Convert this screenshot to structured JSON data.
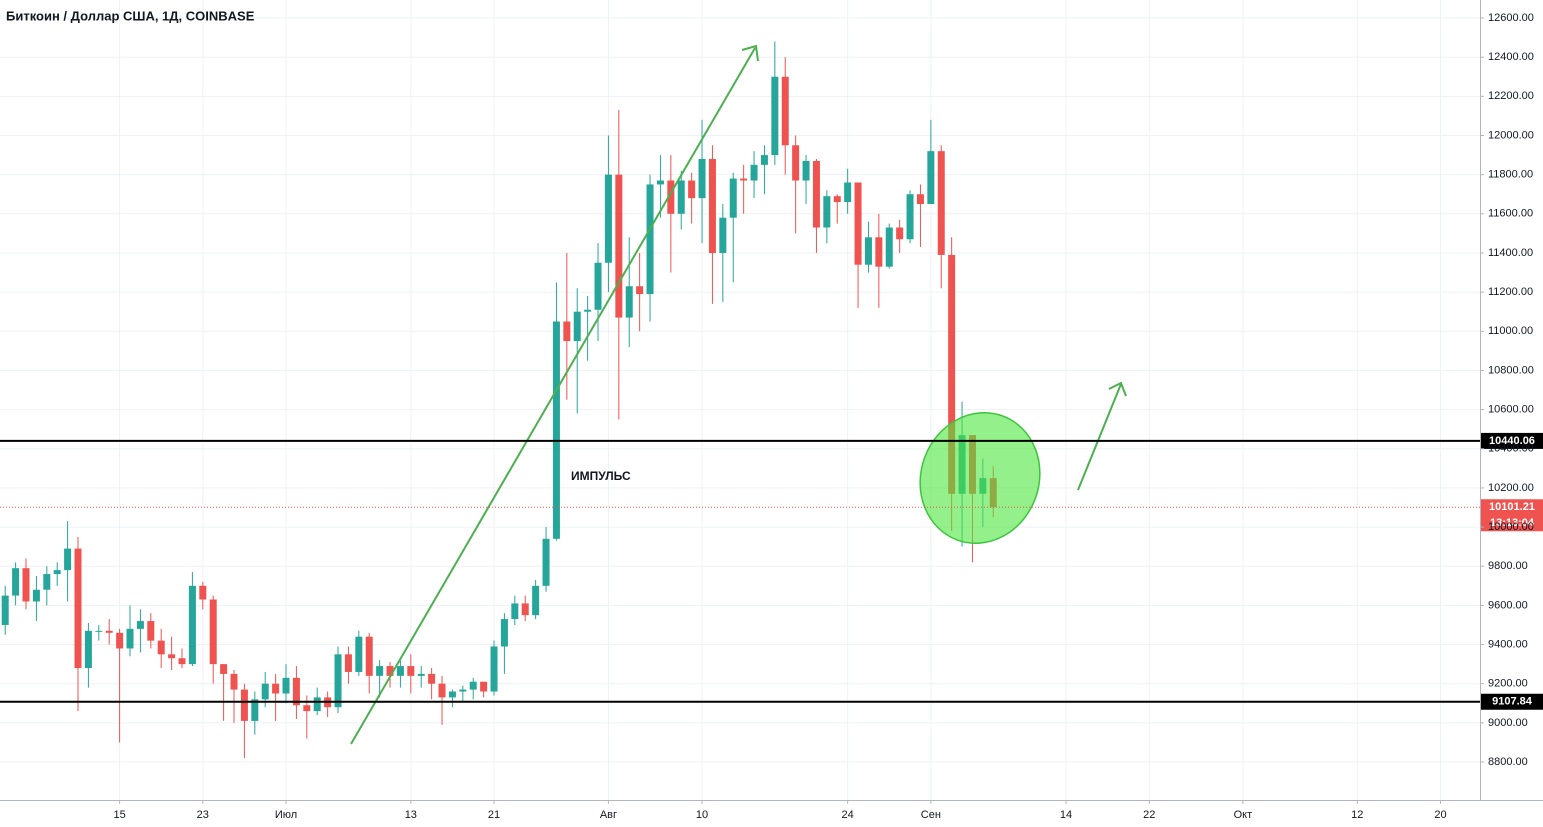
{
  "chart_data": {
    "type": "candlestick",
    "title": "Биткоин / Доллар США, 1Д, COINBASE",
    "annotation": "ИМПУЛЬС",
    "x": [
      -27,
      -26,
      -25,
      -24,
      -23,
      -22,
      -21,
      -20,
      -19,
      -18,
      -17,
      -16,
      -15,
      -14,
      -13,
      -12,
      -11,
      -10,
      -9,
      -8,
      -7,
      -6,
      -5,
      -4,
      -3,
      -2,
      -1,
      0,
      1,
      2,
      3,
      4,
      5,
      6,
      7,
      8,
      9,
      10,
      11,
      12,
      13,
      14,
      15,
      16,
      17,
      18,
      19,
      20,
      21,
      22,
      23,
      24,
      25,
      26,
      27,
      28,
      29,
      30,
      31,
      32,
      33,
      34,
      35,
      36,
      37,
      38,
      39,
      40,
      41,
      42,
      43,
      44,
      45,
      46,
      47,
      48,
      49,
      50,
      51,
      52,
      53,
      54,
      55,
      56,
      57,
      58,
      59,
      60,
      61,
      62,
      63,
      64,
      65,
      66,
      67,
      68
    ],
    "open": [
      9500,
      9650,
      9790,
      9620,
      9680,
      9760,
      9780,
      9890,
      9280,
      9470,
      9470,
      9460,
      9380,
      9480,
      9520,
      9420,
      9350,
      9330,
      9300,
      9700,
      9630,
      9300,
      9250,
      9170,
      9010,
      9120,
      9200,
      9150,
      9230,
      9090,
      9060,
      9130,
      9080,
      9350,
      9260,
      9440,
      9240,
      9290,
      9240,
      9290,
      9240,
      9250,
      9200,
      9130,
      9160,
      9170,
      9210,
      9160,
      9390,
      9530,
      9610,
      9550,
      9700,
      9940,
      11050,
      10950,
      11100,
      11110,
      11350,
      11800,
      11070,
      11230,
      11190,
      11750,
      11770,
      11600,
      11770,
      11680,
      11880,
      11400,
      11580,
      11780,
      11770,
      11850,
      11900,
      12300,
      11950,
      11770,
      11870,
      11530,
      11690,
      11660,
      11760,
      11340,
      11480,
      11330,
      11530,
      11470,
      11700,
      11650,
      11920,
      11390,
      10170,
      10470,
      10170,
      10250
    ],
    "high": [
      9700,
      9820,
      9840,
      9750,
      9800,
      9820,
      10030,
      9950,
      9510,
      9500,
      9530,
      9480,
      9600,
      9580,
      9560,
      9480,
      9440,
      9380,
      9770,
      9720,
      9650,
      9300,
      9270,
      9200,
      9160,
      9260,
      9250,
      9300,
      9290,
      9140,
      9180,
      9160,
      9390,
      9390,
      9470,
      9460,
      9320,
      9310,
      9320,
      9350,
      9290,
      9280,
      9240,
      9170,
      9190,
      9230,
      9210,
      9420,
      9560,
      9650,
      9650,
      9730,
      10000,
      11250,
      11400,
      11220,
      11180,
      11450,
      12000,
      12130,
      11480,
      11400,
      11800,
      11900,
      11900,
      11820,
      11810,
      12080,
      11950,
      11650,
      11810,
      11850,
      11920,
      11950,
      12480,
      12400,
      12000,
      11900,
      11880,
      11720,
      11700,
      11830,
      11760,
      11560,
      11600,
      11550,
      11570,
      11720,
      11750,
      12080,
      11950,
      11480,
      10640,
      10470,
      10350,
      10310
    ],
    "low": [
      9450,
      9600,
      9580,
      9520,
      9600,
      9700,
      9620,
      9060,
      9180,
      9420,
      9400,
      8900,
      9340,
      9360,
      9380,
      9280,
      9270,
      9280,
      9290,
      9580,
      9200,
      9010,
      9000,
      8820,
      8940,
      9080,
      9010,
      9100,
      9020,
      8920,
      9040,
      9030,
      9050,
      9200,
      9240,
      9150,
      9130,
      9180,
      9180,
      9150,
      9180,
      9120,
      8990,
      9080,
      9110,
      9120,
      9130,
      9140,
      9250,
      9500,
      9520,
      9530,
      9670,
      9930,
      10650,
      10580,
      10850,
      10950,
      11200,
      10550,
      10920,
      11000,
      11050,
      11580,
      11300,
      11520,
      11550,
      11450,
      11140,
      11150,
      11250,
      11600,
      11680,
      11700,
      11850,
      11800,
      11500,
      11650,
      11400,
      11450,
      11550,
      11600,
      11120,
      11300,
      11120,
      11320,
      11400,
      11450,
      11430,
      11650,
      11220,
      9980,
      9900,
      9820,
      10000,
      10050
    ],
    "close": [
      9650,
      9790,
      9620,
      9680,
      9760,
      9780,
      9890,
      9280,
      9470,
      9470,
      9460,
      9380,
      9480,
      9520,
      9420,
      9350,
      9330,
      9300,
      9700,
      9630,
      9300,
      9250,
      9170,
      9010,
      9120,
      9200,
      9150,
      9230,
      9090,
      9060,
      9130,
      9080,
      9350,
      9260,
      9440,
      9240,
      9290,
      9240,
      9290,
      9240,
      9250,
      9200,
      9130,
      9160,
      9170,
      9210,
      9160,
      9390,
      9530,
      9610,
      9550,
      9700,
      9940,
      11050,
      10950,
      11100,
      11110,
      11350,
      11800,
      11070,
      11230,
      11190,
      11750,
      11770,
      11600,
      11770,
      11680,
      11880,
      11400,
      11580,
      11780,
      11770,
      11850,
      11900,
      12300,
      11950,
      11770,
      11870,
      11530,
      11690,
      11660,
      11760,
      11340,
      11480,
      11330,
      11530,
      11470,
      11700,
      11650,
      11920,
      11390,
      10170,
      10470,
      10170,
      10250,
      10101.21
    ],
    "up_color": "#26a69a",
    "down_color": "#ef5350",
    "xlim": [
      -27.5,
      114.8
    ],
    "xticks": [
      {
        "value": -16,
        "label": "15"
      },
      {
        "value": -8,
        "label": "23"
      },
      {
        "value": 0,
        "label": "Июл"
      },
      {
        "value": 12,
        "label": "13"
      },
      {
        "value": 20,
        "label": "21"
      },
      {
        "value": 31,
        "label": "Авг"
      },
      {
        "value": 40,
        "label": "10"
      },
      {
        "value": 54,
        "label": "24"
      },
      {
        "value": 62,
        "label": "Сен"
      },
      {
        "value": 75,
        "label": "14"
      },
      {
        "value": 83,
        "label": "22"
      },
      {
        "value": 92,
        "label": "Окт"
      },
      {
        "value": 103,
        "label": "12"
      },
      {
        "value": 111,
        "label": "20"
      }
    ],
    "ylim": [
      8606,
      12692
    ],
    "yticks": [
      {
        "value": 8800,
        "label": "8800.00"
      },
      {
        "value": 9000,
        "label": "9000.00"
      },
      {
        "value": 9200,
        "label": "9200.00"
      },
      {
        "value": 9400,
        "label": "9400.00"
      },
      {
        "value": 9600,
        "label": "9600.00"
      },
      {
        "value": 9800,
        "label": "9800.00"
      },
      {
        "value": 10000,
        "label": "10000.00"
      },
      {
        "value": 10200,
        "label": "10200.00"
      },
      {
        "value": 10400,
        "label": "10400.00"
      },
      {
        "value": 10600,
        "label": "10600.00"
      },
      {
        "value": 10800,
        "label": "10800.00"
      },
      {
        "value": 11000,
        "label": "11000.00"
      },
      {
        "value": 11200,
        "label": "11200.00"
      },
      {
        "value": 11400,
        "label": "11400.00"
      },
      {
        "value": 11600,
        "label": "11600.00"
      },
      {
        "value": 11800,
        "label": "11800.00"
      },
      {
        "value": 12000,
        "label": "12000.00"
      },
      {
        "value": 12200,
        "label": "12200.00"
      },
      {
        "value": 12400,
        "label": "12400.00"
      },
      {
        "value": 12600,
        "label": "12600.00"
      }
    ],
    "grid": true,
    "hlines": [
      10440.06,
      9107.84
    ],
    "last_price": 10101.21,
    "timer": "13:13:04"
  }
}
